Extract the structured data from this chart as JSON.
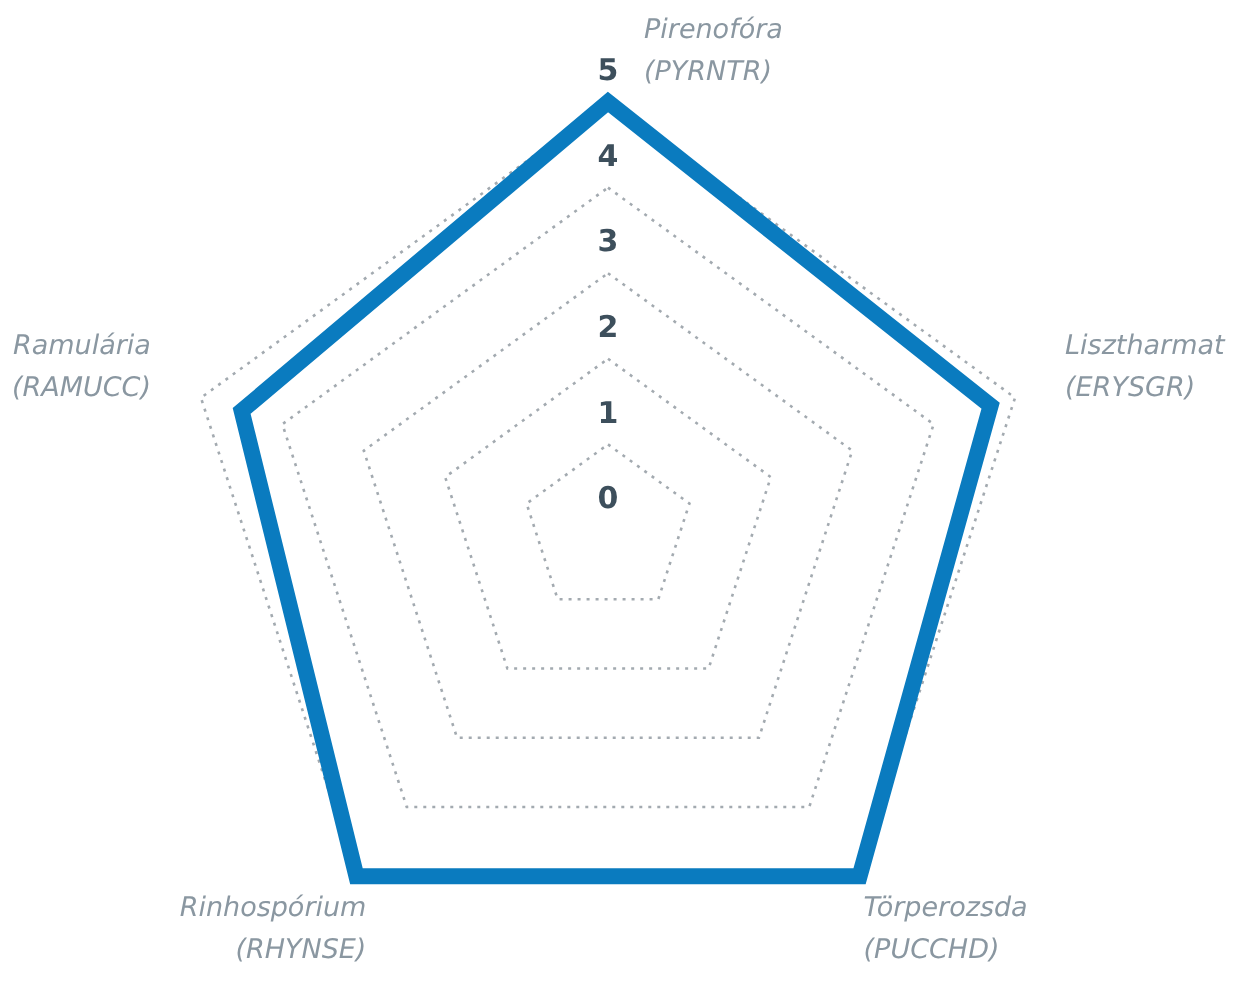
{
  "chart_data": {
    "type": "radar",
    "categories": [
      "Pirenofóra (PYRNTR)",
      "Lisztharmat (ERYSGR)",
      "Törperozsda (PUCCHD)",
      "Rinhospórium (RHYNSE)",
      "Ramulária (RAMUCC)"
    ],
    "series": [
      {
        "color": "#0a7bbf",
        "values": [
          5,
          4.7,
          5,
          5,
          4.5
        ]
      }
    ],
    "ylim": [
      0,
      5
    ],
    "yticks": [
      0,
      1,
      2,
      3,
      4,
      5
    ],
    "grid": true,
    "line_style": "solid"
  }
}
